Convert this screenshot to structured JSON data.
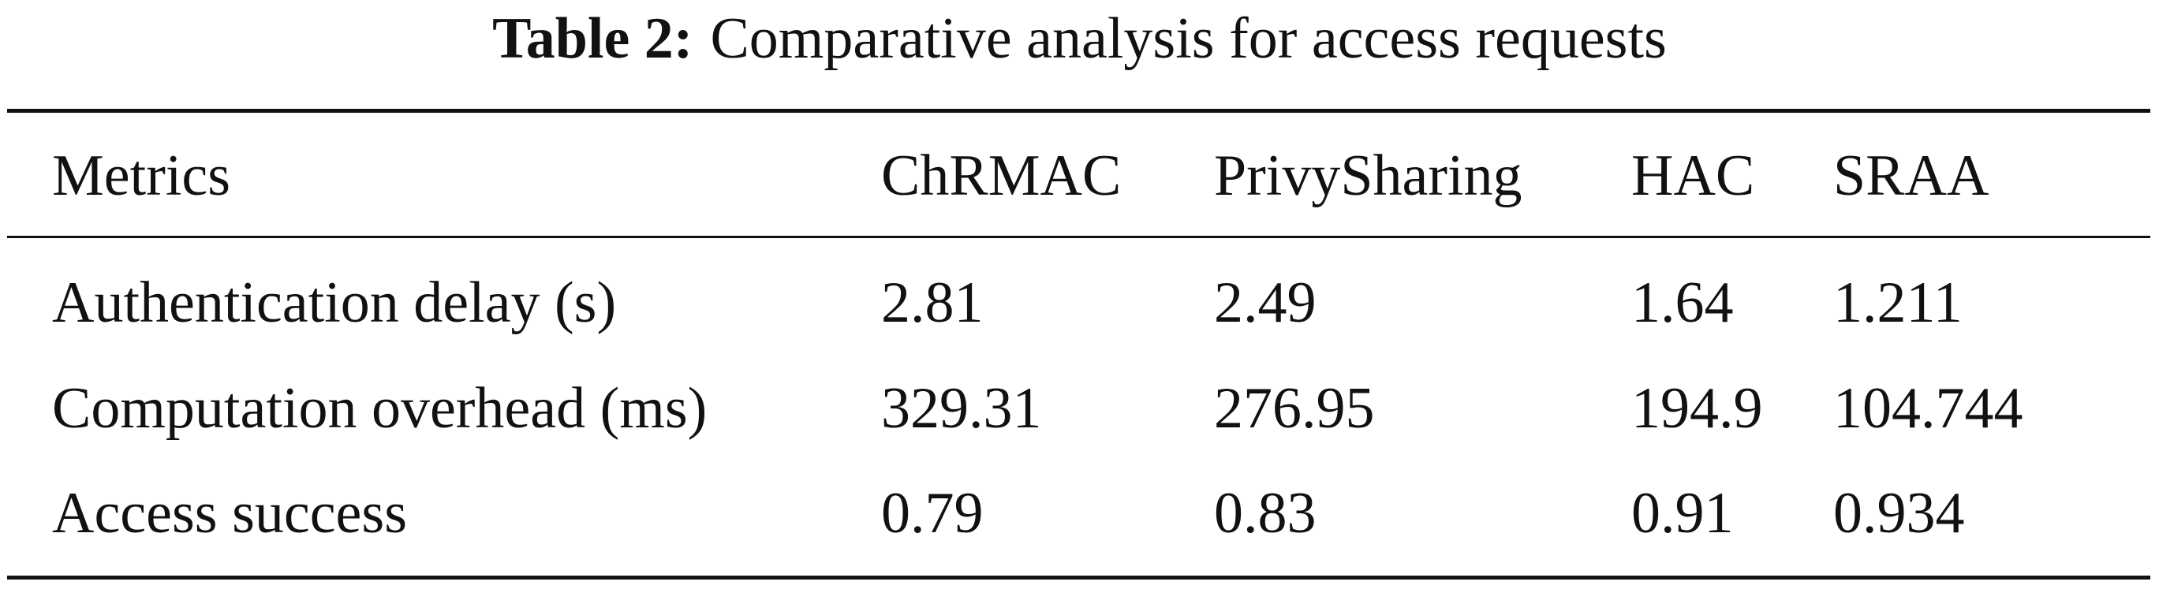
{
  "caption": {
    "label": "Table 2:",
    "text": "Comparative analysis for access requests"
  },
  "table": {
    "header": [
      "Metrics",
      "ChRMAC",
      "PrivySharing",
      "HAC",
      "SRAA"
    ],
    "rows": [
      [
        "Authentication delay (s)",
        "2.81",
        "2.49",
        "1.64",
        "1.211"
      ],
      [
        "Computation overhead (ms)",
        "329.31",
        "276.95",
        "194.9",
        "104.744"
      ],
      [
        "Access success",
        "0.79",
        "0.83",
        "0.91",
        "0.934"
      ]
    ]
  }
}
